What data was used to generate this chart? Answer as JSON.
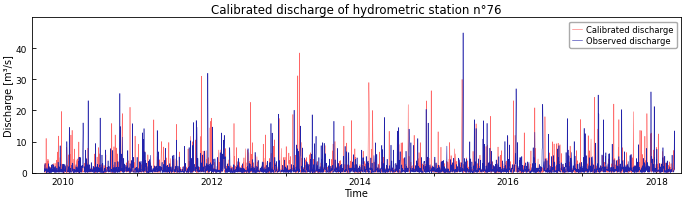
{
  "title": "Calibrated discharge of hydrometric station n°76",
  "xlabel": "Time",
  "ylabel": "Discharge [m³/s]",
  "ylim": [
    0,
    50
  ],
  "yticks": [
    0,
    10,
    20,
    30,
    40
  ],
  "xticks": [
    2010,
    2012,
    2014,
    2016,
    2018
  ],
  "legend_labels": [
    "Calibrated discharge",
    "Observed discharge"
  ],
  "calibrated_color": "#FF6666",
  "observed_color": "#2222AA",
  "background_color": "#FFFFFF",
  "title_fontsize": 8.5,
  "axis_fontsize": 7,
  "tick_fontsize": 6.5,
  "legend_fontsize": 6,
  "linewidth": 0.4
}
